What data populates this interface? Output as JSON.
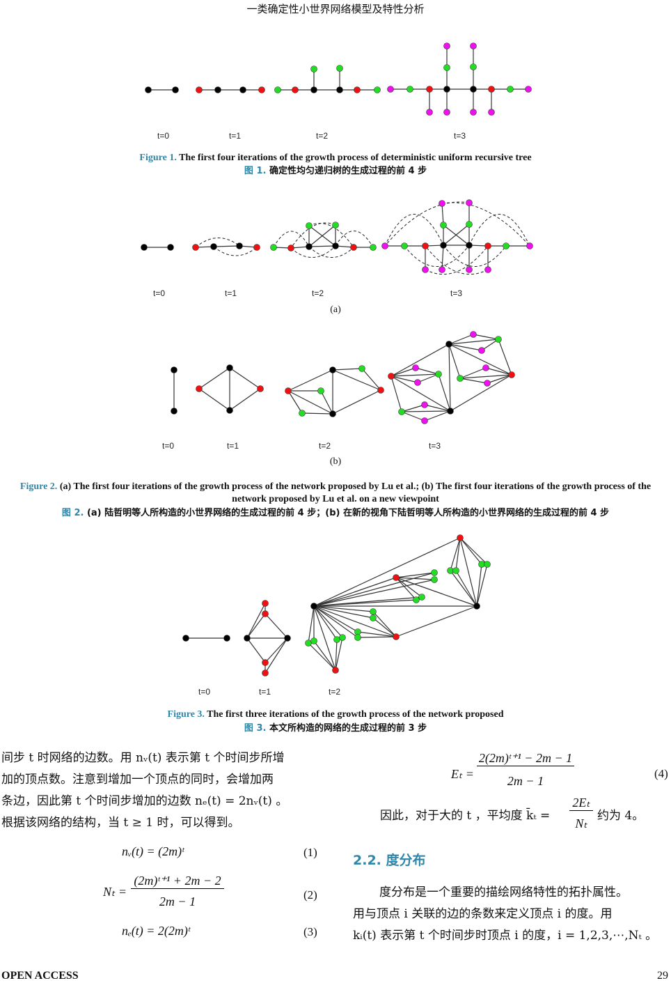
{
  "header": {
    "running_title": "一类确定性小世界网络模型及特性分析"
  },
  "figure1": {
    "time_labels": [
      "t=0",
      "t=1",
      "t=2",
      "t=3"
    ],
    "caption_label": "Figure 1.",
    "caption": "The first four iterations of the growth process of deterministic uniform recursive tree",
    "caption_zh_label": "图 1.",
    "caption_zh": "确定性均匀递归树的生成过程的前 4 步"
  },
  "figure2": {
    "time_labels_a": [
      "t=0",
      "t=1",
      "t=2",
      "t=3"
    ],
    "sub_a": "(a)",
    "time_labels_b": [
      "t=0",
      "t=1",
      "t=2",
      "t=3"
    ],
    "sub_b": "(b)",
    "caption_label": "Figure 2.",
    "caption": "(a) The first four iterations of the growth process of the network proposed by Lu et al.; (b) The first four iterations of the growth process of the network proposed by Lu et al. on a new viewpoint",
    "caption_zh_label": "图 2.",
    "caption_zh": "(a) 陆哲明等人所构造的小世界网络的生成过程的前 4 步；(b) 在新的视角下陆哲明等人所构造的小世界网络的生成过程的前 4 步"
  },
  "figure3": {
    "time_labels": [
      "t=0",
      "t=1",
      "t=2"
    ],
    "caption_label": "Figure 3.",
    "caption": "The first three iterations of the growth process of the network proposed",
    "caption_zh_label": "图 3.",
    "caption_zh": "本文所构造的网络的生成过程的前 3 步"
  },
  "node_colors": {
    "black": "#000000",
    "red": "#ee1111",
    "green": "#22dd22",
    "magenta": "#ee11ee"
  },
  "body": {
    "left_paragraph": [
      "间步 t 时网络的边数。用 nᵥ(t) 表示第 t 个时间步所增",
      "加的顶点数。注意到增加一个顶点的同时，会增加两",
      "条边，因此第 t 个时间步增加的边数 nₑ(t) = 2nᵥ(t) 。",
      "根据该网络的结构，当 t ≥ 1 时，可以得到。"
    ],
    "eq1": "nᵥ(t) = (2m)ᵗ",
    "eq1_no": "(1)",
    "eq2_num": "(2m)ᵗ⁺¹ + 2m − 2",
    "eq2_lhs": "Nₜ =",
    "eq2_den": "2m − 1",
    "eq2_no": "(2)",
    "eq3": "nₑ(t) = 2(2m)ᵗ",
    "eq3_no": "(3)",
    "eq4_lhs": "Eₜ =",
    "eq4_num": "2(2m)ᵗ⁺¹ − 2m − 1",
    "eq4_den": "2m − 1",
    "eq4_no": "(4)",
    "avg_pre": "因此，对于大的 t ，平均度 k̄ₜ =",
    "avg_num": "2Eₜ",
    "avg_den": "Nₜ",
    "avg_post": "约为 4。",
    "section": "2.2.  度分布",
    "right_paragraph": [
      "度分布是一个重要的描绘网络特性的拓扑属性。",
      "用与顶点 i 关联的边的条数来定义顶点 i 的度。用",
      "kᵢ(t) 表示第 t 个时间步时顶点 i 的度，i = 1,2,3,⋯,Nₜ 。"
    ]
  },
  "footer": {
    "left": "OPEN ACCESS",
    "page": "29"
  }
}
